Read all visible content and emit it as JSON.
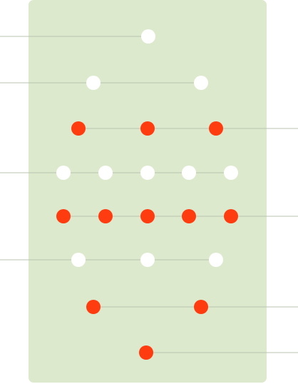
{
  "colors": {
    "background": "#ffffff",
    "board": "#dde9cc",
    "line": "#b9c4b0",
    "dot_white": "#ffffff",
    "dot_red": "#ff3b10"
  },
  "rows": [
    {
      "side": "left",
      "dots": [
        "white"
      ]
    },
    {
      "side": "left",
      "dots": [
        "white",
        "white"
      ]
    },
    {
      "side": "right",
      "dots": [
        "red",
        "red",
        "red"
      ]
    },
    {
      "side": "left",
      "dots": [
        "white",
        "white",
        "white",
        "white",
        "white"
      ]
    },
    {
      "side": "right",
      "dots": [
        "red",
        "red",
        "red",
        "red",
        "red"
      ]
    },
    {
      "side": "left",
      "dots": [
        "white",
        "white",
        "white"
      ]
    },
    {
      "side": "right",
      "dots": [
        "red",
        "red"
      ]
    },
    {
      "side": "right",
      "dots": [
        "red"
      ]
    }
  ]
}
